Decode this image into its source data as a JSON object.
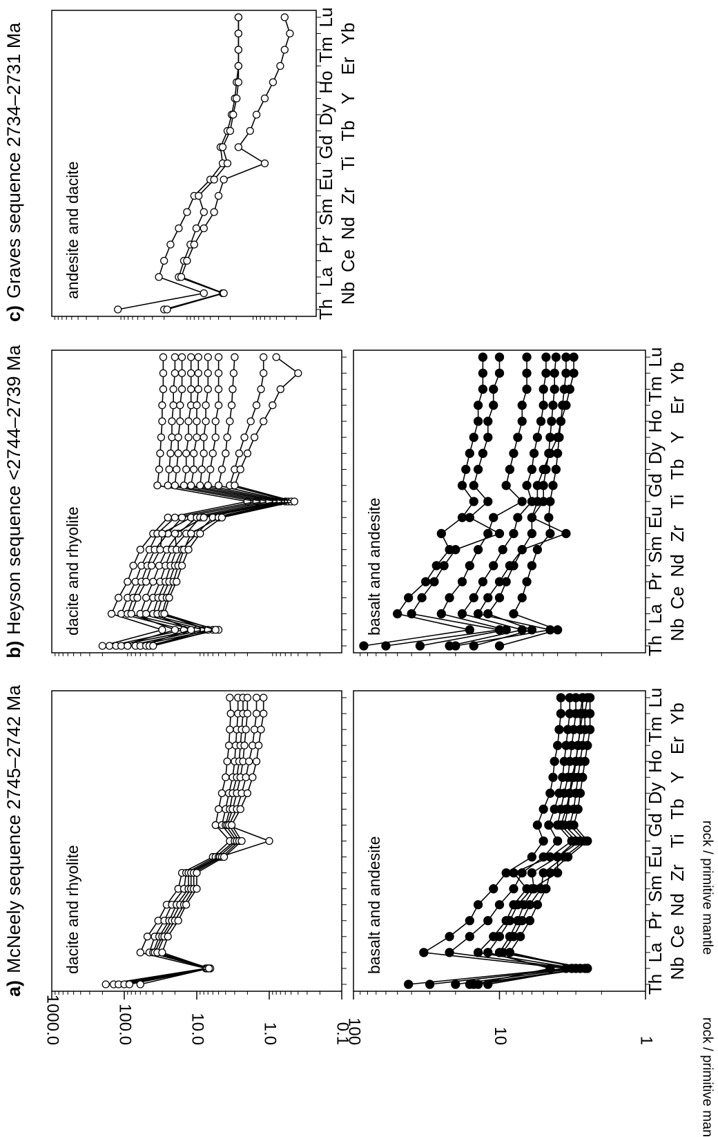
{
  "chart_data": [
    {
      "type": "line",
      "panel_label": "a)",
      "title": "McNeely sequence 2745–2742 Ma",
      "annotation": "dacite and rhyolite",
      "y_label": "rock / primitive mantle",
      "log": true,
      "marker": "open",
      "color": "#000000",
      "ylim": [
        0.1,
        1000
      ],
      "yticks": [
        {
          "value": 1000,
          "label": "1000.0"
        },
        {
          "value": 100,
          "label": "100.0"
        },
        {
          "value": 10,
          "label": "10.0"
        },
        {
          "value": 1,
          "label": "1.0"
        },
        {
          "value": 0.1,
          "label": "0.1"
        }
      ],
      "series": [
        {
          "values": [
            180,
            7.5,
            60,
            48,
            34,
            26,
            18,
            16,
            6,
            3.5,
            5.5,
            5,
            4.5,
            4,
            3.8,
            3.6,
            3.5,
            3.4,
            3.5
          ]
        },
        {
          "values": [
            140,
            7,
            45,
            38,
            28,
            22,
            15,
            14,
            5.5,
            3,
            4.5,
            4,
            3.6,
            3.2,
            3,
            2.9,
            2.8,
            2.7,
            2.7
          ]
        },
        {
          "values": [
            120,
            6.8,
            40,
            33,
            24,
            19,
            13,
            13,
            5,
            2.8,
            4,
            3.5,
            3.2,
            2.8,
            2.6,
            2.5,
            2.4,
            2.3,
            2.3
          ]
        },
        {
          "values": [
            100,
            7.2,
            38,
            30,
            22,
            17,
            12,
            12,
            4.8,
            1.0,
            3.8,
            3.2,
            2.8,
            2.5,
            2.3,
            2.2,
            2.1,
            2.0,
            2.0
          ]
        },
        {
          "values": [
            85,
            6.5,
            35,
            28,
            20,
            15,
            11,
            11,
            4.5,
            2.6,
            3.6,
            2.8,
            2.4,
            2.1,
            1.9,
            1.7,
            1.6,
            1.5,
            1.5
          ]
        },
        {
          "values": [
            60,
            6.8,
            30,
            25,
            18,
            14,
            10,
            10,
            4.2,
            2.4,
            3.3,
            2.5,
            2.0,
            1.7,
            1.5,
            1.4,
            1.3,
            1.2,
            1.2
          ]
        }
      ]
    },
    {
      "type": "line",
      "annotation": "basalt and andesite",
      "y_label": "rock / primitive mantle",
      "log": true,
      "marker": "filled",
      "color": "#000000",
      "categories": [
        "Th",
        "Nb",
        "La",
        "Ce",
        "Pr",
        "Nd",
        "Sm",
        "Zr",
        "Eu",
        "Ti",
        "Gd",
        "Tb",
        "Dy",
        "Y",
        "Ho",
        "Er",
        "Tm",
        "Yb",
        "Lu"
      ],
      "ylim": [
        1,
        100
      ],
      "yticks": [
        1,
        10,
        100
      ],
      "series": [
        {
          "values": [
            42,
            3.5,
            33,
            22,
            16,
            14,
            11,
            9,
            6,
            5,
            5.5,
            5,
            4.5,
            4.3,
            4.2,
            4,
            3.9,
            3.8,
            3.8
          ]
        },
        {
          "values": [
            30,
            3.2,
            22,
            16,
            12,
            10,
            8,
            7,
            5,
            4,
            4.6,
            4.2,
            3.9,
            3.7,
            3.6,
            3.5,
            3.4,
            3.3,
            3.3
          ]
        },
        {
          "values": [
            20,
            3,
            14,
            11,
            9,
            8,
            6.5,
            8,
            4.5,
            3.2,
            4,
            3.8,
            3.6,
            3.4,
            3.3,
            3.2,
            3.1,
            3.0,
            3.0
          ]
        },
        {
          "values": [
            16,
            2.6,
            10,
            8.5,
            7.5,
            6.8,
            5.8,
            6,
            4,
            2.8,
            3.6,
            3.4,
            3.3,
            3.2,
            3.0,
            2.9,
            2.8,
            2.8,
            2.7
          ]
        },
        {
          "values": [
            14,
            2.5,
            9.5,
            8,
            7,
            6.2,
            5.2,
            5,
            3.6,
            2.6,
            3.3,
            3.1,
            3.0,
            2.9,
            2.8,
            2.7,
            2.6,
            2.6,
            2.5
          ]
        },
        {
          "values": [
            12,
            2.8,
            8.5,
            7.2,
            6.2,
            5.5,
            4.8,
            4.5,
            3.4,
            2.5,
            3.1,
            2.9,
            2.8,
            2.7,
            2.6,
            2.5,
            2.4,
            2.4,
            2.4
          ]
        },
        {
          "values": [
            15,
            4.5,
            12,
            10,
            8.5,
            7.5,
            6,
            4,
            4,
            3,
            3.8,
            3.5,
            3.3,
            3.1,
            3,
            2.9,
            2.8,
            2.7,
            2.7
          ]
        }
      ]
    },
    {
      "type": "line",
      "panel_label": "b)",
      "title": "Heyson sequence <2744–2739 Ma",
      "annotation": "dacite and rhyolite",
      "log": true,
      "marker": "open",
      "color": "#000000",
      "ylim": [
        0.1,
        1000
      ],
      "series": [
        {
          "values": [
            200,
            30,
            150,
            120,
            90,
            75,
            60,
            40,
            25,
            2,
            35,
            33,
            32,
            31,
            30,
            30,
            29,
            29,
            29
          ]
        },
        {
          "values": [
            160,
            15,
            110,
            90,
            70,
            58,
            45,
            35,
            20,
            1.5,
            25,
            24,
            23,
            22,
            22,
            21,
            21,
            20,
            20
          ]
        },
        {
          "values": [
            130,
            10,
            90,
            75,
            58,
            48,
            38,
            25,
            16,
            1.2,
            20,
            19,
            18,
            18,
            17,
            17,
            16,
            16,
            16
          ]
        },
        {
          "values": [
            110,
            20,
            80,
            66,
            50,
            42,
            32,
            30,
            12,
            1.0,
            15,
            14,
            14,
            13,
            13,
            12,
            12,
            12,
            12
          ]
        },
        {
          "values": [
            90,
            8,
            60,
            50,
            40,
            33,
            26,
            18,
            10,
            0.8,
            12,
            11,
            11,
            10,
            10,
            10,
            9.5,
            9.5,
            9.5
          ]
        },
        {
          "values": [
            70,
            6,
            50,
            40,
            32,
            27,
            22,
            14,
            9,
            0.7,
            9,
            8.5,
            8,
            8,
            7.5,
            7.5,
            7,
            7,
            7
          ]
        },
        {
          "values": [
            60,
            12,
            40,
            34,
            27,
            23,
            19,
            20,
            8,
            0.6,
            7,
            6.5,
            6,
            5.5,
            5.5,
            5,
            5,
            5,
            5
          ]
        },
        {
          "values": [
            50,
            5,
            35,
            30,
            24,
            20,
            16,
            10,
            6,
            0.55,
            5,
            4.5,
            4,
            3.8,
            3.5,
            3.3,
            3.2,
            3.1,
            3.0
          ]
        },
        {
          "values": [
            45,
            7,
            30,
            26,
            21,
            18,
            15,
            12,
            5,
            0.5,
            3.5,
            3,
            2.6,
            2.2,
            1.8,
            1.5,
            1.3,
            1.2,
            1.2
          ]
        },
        {
          "values": [
            40,
            5.5,
            28,
            24,
            19,
            16,
            13,
            9,
            4.5,
            0.45,
            3,
            2.5,
            2,
            1.6,
            1.2,
            0.9,
            0.7,
            0.4,
            0.8
          ]
        }
      ]
    },
    {
      "type": "line",
      "annotation": "basalt and andesite",
      "log": true,
      "marker": "filled",
      "color": "#000000",
      "categories": [
        "Th",
        "Nb",
        "La",
        "Ce",
        "Pr",
        "Nd",
        "Sm",
        "Zr",
        "Eu",
        "Ti",
        "Gd",
        "Tb",
        "Dy",
        "Y",
        "Ho",
        "Er",
        "Tm",
        "Yb",
        "Lu"
      ],
      "ylim": [
        1,
        100
      ],
      "series": [
        {
          "values": [
            85,
            16,
            50,
            42,
            32,
            27,
            22,
            25,
            18,
            15,
            18,
            17,
            16,
            15,
            14,
            14,
            13,
            13,
            13
          ]
        },
        {
          "values": [
            60,
            10,
            40,
            34,
            28,
            24,
            20,
            10,
            16,
            12,
            15,
            14,
            13,
            12,
            12,
            11,
            11,
            10,
            10
          ]
        },
        {
          "values": [
            35,
            9,
            25,
            22,
            18,
            16,
            14,
            12,
            11,
            7,
            9,
            8.5,
            8,
            7.5,
            7,
            7,
            6.5,
            6.5,
            6.5
          ]
        },
        {
          "values": [
            22,
            7,
            18,
            15,
            13,
            11,
            9.5,
            8,
            7.5,
            6,
            6.5,
            6,
            5.8,
            5.5,
            5.2,
            5,
            5,
            4.8,
            4.8
          ]
        },
        {
          "values": [
            15,
            6,
            12,
            10,
            9,
            8,
            7,
            6,
            6,
            5,
            5,
            4.8,
            4.6,
            4.5,
            4.4,
            4.3,
            4.2,
            4.2,
            4.1
          ]
        },
        {
          "values": [
            10,
            4,
            8,
            7,
            6.5,
            6,
            5.5,
            4.5,
            4.6,
            4.5,
            4.3,
            4.1,
            4,
            3.9,
            3.8,
            3.7,
            3.6,
            3.5,
            3.5
          ]
        },
        {
          "values": [
            20,
            4.5,
            14,
            12,
            10,
            8.5,
            7,
            3.5,
            6,
            5.5,
            5.5,
            5,
            4.5,
            4,
            3.8,
            3.5,
            3.3,
            3.1,
            3.1
          ]
        }
      ]
    },
    {
      "type": "line",
      "panel_label": "c)",
      "title": "Graves sequence 2734–2731 Ma",
      "annotation": "andesite and dacite",
      "log": true,
      "marker": "open",
      "color": "#000000",
      "categories": [
        "Th",
        "Nb",
        "La",
        "Ce",
        "Pr",
        "Nd",
        "Sm",
        "Zr",
        "Eu",
        "Ti",
        "Gd",
        "Tb",
        "Dy",
        "Y",
        "Ho",
        "Er",
        "Tm",
        "Yb",
        "Lu"
      ],
      "ylim": [
        0.1,
        1000
      ],
      "series": [
        {
          "values": [
            100,
            5,
            24,
            20,
            16,
            12,
            9,
            7,
            4,
            2.6,
            2.8,
            2.2,
            1.9,
            1.7,
            1.6,
            1.5,
            1.5,
            1.5,
            1.5
          ]
        },
        {
          "values": [
            20,
            2.6,
            12,
            10,
            8,
            6.5,
            5,
            6,
            3.5,
            2.2,
            2.6,
            2.0,
            1.8,
            1.6,
            1.5,
            1.5,
            1.5,
            1.5,
            1.5
          ]
        },
        {
          "values": [
            18,
            2.5,
            11,
            9,
            7,
            5,
            3.5,
            3,
            2.5,
            0.6,
            1.5,
            1.0,
            0.8,
            0.6,
            0.45,
            0.35,
            0.3,
            0.25,
            0.3
          ]
        }
      ]
    }
  ]
}
